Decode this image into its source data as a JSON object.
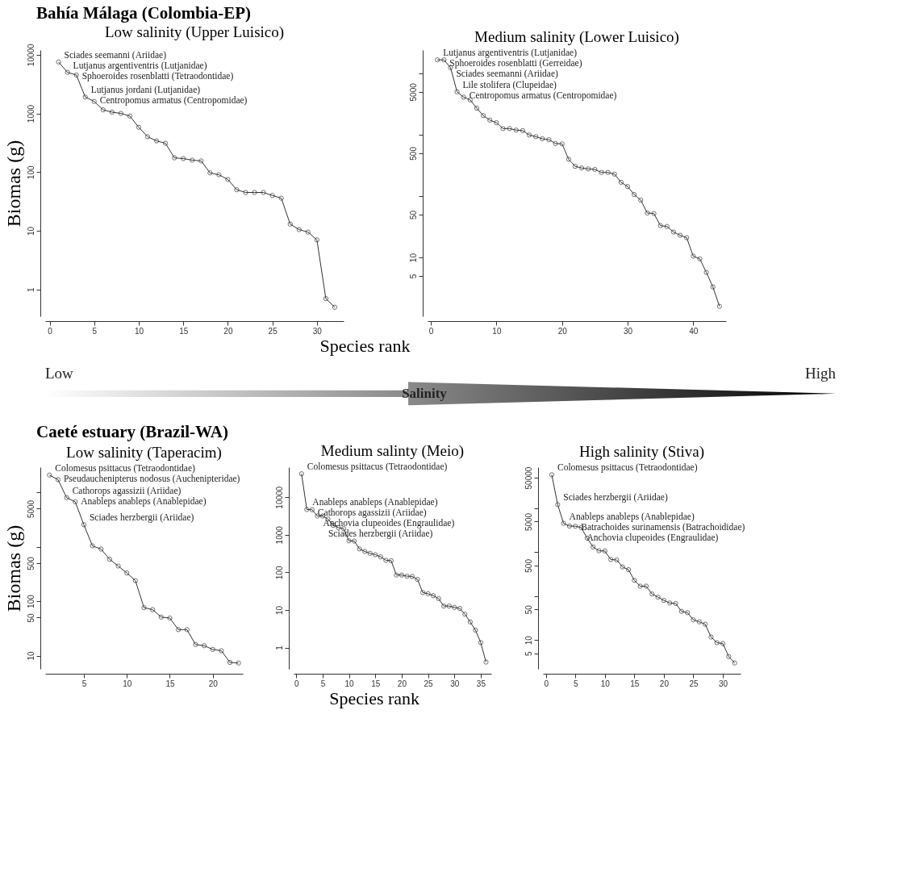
{
  "chart_data": [
    {
      "type": "line",
      "title": "Low salinity (Upper Luisico)",
      "xlabel": "Species rank",
      "ylabel": "Biomas (g)",
      "log": "y",
      "marker": "circle",
      "line_style": "solid",
      "annotations": [
        "Bahía Málaga (Colombia-EP)",
        {
          "text": "Sciades seemanni (Ariidae)",
          "x": 1,
          "y": 7500
        },
        {
          "text": "Lutjanus argentiventris (Lutjanidae)",
          "x": 2,
          "y": 5000
        },
        {
          "text": "Sphoeroides rosenblatti (Tetraodontidae)",
          "x": 3,
          "y": 4500
        },
        {
          "text": "Lutjanus jordani (Lutjanidae)",
          "x": 4,
          "y": 1900
        },
        {
          "text": "Centropomus armatus (Centropomidae)",
          "x": 5,
          "y": 1600
        }
      ],
      "xlim": [
        -0.5,
        33
      ],
      "xticks": [
        0,
        5,
        10,
        15,
        20,
        25,
        30
      ],
      "ylim": [
        0.35,
        12000
      ],
      "yticks": [
        1,
        10,
        100,
        1000,
        10000
      ],
      "x": [
        1,
        2,
        3,
        4,
        5,
        6,
        7,
        8,
        9,
        10,
        11,
        12,
        13,
        14,
        15,
        16,
        17,
        18,
        19,
        20,
        21,
        22,
        23,
        24,
        25,
        26,
        27,
        28,
        29,
        30,
        31,
        32
      ],
      "series": [
        {
          "color": "#333333",
          "values": [
            7500,
            5000,
            4500,
            1900,
            1600,
            1150,
            1050,
            1000,
            900,
            580,
            400,
            340,
            310,
            175,
            170,
            160,
            155,
            97,
            90,
            75,
            50,
            45,
            45,
            45,
            40,
            36,
            13,
            10.5,
            9.5,
            7,
            0.7,
            0.5
          ]
        }
      ]
    },
    {
      "type": "line",
      "title": "Medium salinity (Lower Luisico)",
      "log": "y",
      "marker": "circle",
      "line_style": "solid",
      "annotations": [
        {
          "text": "Lutjanus argentiventris (Lutjanidae)",
          "x": 1,
          "y": 16600
        },
        {
          "text": "Sphoeroides rosenblatti (Gerreidae)",
          "x": 2,
          "y": 16600
        },
        {
          "text": "Sciades seemanni (Ariidae)",
          "x": 3,
          "y": 12400
        },
        {
          "text": "Lile stolifera (Clupeidae)",
          "x": 4,
          "y": 5000
        },
        {
          "text": "Centropomus armatus (Centropomidae)",
          "x": 5,
          "y": 4100
        }
      ],
      "xlim": [
        -0.5,
        45
      ],
      "xticks": [
        0,
        10,
        20,
        30,
        40
      ],
      "ylim": [
        1.1,
        24000
      ],
      "yticks": [
        5,
        10,
        50,
        {
          "value": 100,
          "label": null
        },
        500,
        {
          "value": 1000,
          "label": null
        },
        5000,
        {
          "value": 10000,
          "label": null
        }
      ],
      "x": [
        1,
        2,
        3,
        4,
        5,
        6,
        7,
        8,
        9,
        10,
        11,
        12,
        13,
        14,
        15,
        16,
        17,
        18,
        19,
        20,
        21,
        22,
        23,
        24,
        25,
        26,
        27,
        28,
        29,
        30,
        31,
        32,
        33,
        34,
        35,
        36,
        37,
        38,
        39,
        40,
        41,
        42,
        43,
        44
      ],
      "series": [
        {
          "color": "#333333",
          "values": [
            16600,
            16600,
            12400,
            5000,
            4100,
            3700,
            2700,
            2050,
            1730,
            1570,
            1260,
            1260,
            1190,
            1170,
            990,
            930,
            860,
            830,
            720,
            710,
            400,
            305,
            287,
            277,
            272,
            243,
            243,
            228,
            168,
            143,
            106,
            86,
            53,
            52,
            33,
            32,
            26,
            23,
            21,
            10.5,
            9.5,
            5.7,
            3.3,
            1.6
          ]
        }
      ]
    },
    {
      "type": "other",
      "title": "Salinity",
      "annotations": [
        "Low",
        "High"
      ]
    },
    {
      "type": "line",
      "title": "Low salinity (Taperacim)",
      "xlabel": "Species rank",
      "ylabel": "Biomas (g)",
      "log": "y",
      "marker": "circle",
      "line_style": "solid",
      "annotations": [
        "Caeté estuary (Brazil-WA)",
        {
          "text": "Colomesus psittacus (Tetraodontidae)",
          "x": 1,
          "y": 20800
        },
        {
          "text": "Pseudauchenipterus nodosus (Auchenipteridae)",
          "x": 2,
          "y": 17100
        },
        {
          "text": "Cathorops agassizii (Ariidae)",
          "x": 3,
          "y": 7980
        },
        {
          "text": "Anableps anableps (Anablepidae)",
          "x": 4,
          "y": 6700
        },
        {
          "text": "Sciades herzbergii (Ariidae)",
          "x": 5,
          "y": 2540
        }
      ],
      "xlim": [
        0.5,
        23.5
      ],
      "xticks": [
        5,
        10,
        15,
        20
      ],
      "ylim": [
        5.7,
        29000
      ],
      "yticks": [
        10,
        50,
        100,
        500,
        {
          "value": 1000,
          "label": null
        },
        5000,
        {
          "value": 10000,
          "label": null
        }
      ],
      "x": [
        1,
        2,
        3,
        4,
        5,
        6,
        7,
        8,
        9,
        10,
        11,
        12,
        13,
        14,
        15,
        16,
        17,
        18,
        19,
        20,
        21,
        22,
        23
      ],
      "series": [
        {
          "color": "#333333",
          "values": [
            20800,
            17100,
            7980,
            6700,
            2540,
            1040,
            906,
            589,
            443,
            330,
            239,
            76,
            70,
            51,
            49,
            30,
            30,
            16,
            15.2,
            13,
            12.3,
            7.5,
            7.3
          ]
        }
      ]
    },
    {
      "type": "line",
      "title": "Medium salinty (Meio)",
      "log": "y",
      "marker": "circle",
      "line_style": "solid",
      "annotations": [
        {
          "text": "Colomesus psittacus (Tetraodontidae)",
          "x": 1,
          "y": 42000
        },
        {
          "text": "Anableps anableps (Anablepidae)",
          "x": 2,
          "y": 4710
        },
        {
          "text": "Cathorops agassizii (Ariidae)",
          "x": 3,
          "y": 4650
        },
        {
          "text": "Anchovia clupeoides (Engraulidae)",
          "x": 4,
          "y": 3160
        },
        {
          "text": "Sciades herzbergii (Ariidae)",
          "x": 5,
          "y": 3160
        }
      ],
      "xlim": [
        -0.5,
        37
      ],
      "xticks": [
        0,
        5,
        10,
        15,
        20,
        25,
        30,
        35
      ],
      "ylim": [
        0.27,
        63000
      ],
      "yticks": [
        1,
        10,
        100,
        1000,
        10000
      ],
      "x": [
        1,
        2,
        3,
        4,
        5,
        6,
        7,
        8,
        9,
        10,
        11,
        12,
        13,
        14,
        15,
        16,
        17,
        18,
        19,
        20,
        21,
        22,
        23,
        24,
        25,
        26,
        27,
        28,
        29,
        30,
        31,
        32,
        33,
        34,
        35,
        36
      ],
      "series": [
        {
          "color": "#333333",
          "values": [
            42000,
            4710,
            4650,
            3160,
            3160,
            2630,
            1790,
            1550,
            1450,
            690,
            680,
            420,
            360,
            321,
            295,
            259,
            210,
            205,
            85,
            85,
            79,
            78,
            65,
            29,
            27,
            24,
            20,
            12.7,
            12.7,
            11.7,
            11,
            7.7,
            4.8,
            2.9,
            1.35,
            0.41
          ]
        }
      ]
    },
    {
      "type": "line",
      "title": "High salinity (Stiva)",
      "log": "y",
      "marker": "circle",
      "line_style": "solid",
      "annotations": [
        {
          "text": "Colomesus psittacus (Tetraodontidae)",
          "x": 1,
          "y": 58500
        },
        {
          "text": "Sciades herzbergii (Ariidae)",
          "x": 2,
          "y": 12200
        },
        {
          "text": "Anableps anableps (Anablepidae)",
          "x": 3,
          "y": 4580
        },
        {
          "text": "Batrachoides surinamensis (Batrachoididae)",
          "x": 5,
          "y": 3930
        },
        {
          "text": "Anchovia clupeoides (Engraulidae)",
          "x": 6,
          "y": 3640
        }
      ],
      "xlim": [
        -0.5,
        33
      ],
      "xticks": [
        0,
        5,
        10,
        15,
        20,
        25,
        30
      ],
      "ylim": [
        2.2,
        87000
      ],
      "yticks": [
        5,
        10,
        50,
        {
          "value": 100,
          "label": null
        },
        500,
        {
          "value": 1000,
          "label": null
        },
        5000,
        {
          "value": 10000,
          "label": null
        },
        50000
      ],
      "x": [
        1,
        2,
        3,
        4,
        5,
        6,
        7,
        8,
        9,
        10,
        11,
        12,
        13,
        14,
        15,
        16,
        17,
        18,
        19,
        20,
        21,
        22,
        23,
        24,
        25,
        26,
        27,
        28,
        29,
        30,
        31,
        32
      ],
      "series": [
        {
          "color": "#333333",
          "values": [
            58500,
            12200,
            4580,
            3960,
            3930,
            3640,
            2100,
            1320,
            1080,
            1070,
            686,
            669,
            464,
            401,
            229,
            169,
            169,
            112,
            95,
            80,
            70,
            68,
            45,
            42,
            29,
            26,
            23,
            11.7,
            8.7,
            8.3,
            4.2,
            3.0
          ]
        }
      ]
    }
  ]
}
